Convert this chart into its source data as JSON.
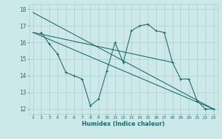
{
  "bg_color": "#cce8e8",
  "grid_color": "#aacfcf",
  "line_color": "#1a6b6b",
  "xlabel": "Humidex (Indice chaleur)",
  "ylim": [
    11.7,
    18.3
  ],
  "xlim": [
    0.5,
    23.5
  ],
  "yticks": [
    12,
    13,
    14,
    15,
    16,
    17,
    18
  ],
  "xticks": [
    1,
    2,
    3,
    4,
    5,
    6,
    7,
    8,
    9,
    10,
    11,
    12,
    13,
    14,
    15,
    16,
    17,
    18,
    19,
    20,
    21,
    22,
    23
  ],
  "series": [
    {
      "x": [
        2,
        3,
        4,
        5,
        6,
        7,
        8,
        9,
        10,
        11,
        12,
        13,
        14,
        15,
        16,
        17,
        18,
        19,
        20,
        21,
        22,
        23
      ],
      "y": [
        16.6,
        15.9,
        15.3,
        14.2,
        14.0,
        13.8,
        12.2,
        12.6,
        14.3,
        16.0,
        14.8,
        16.7,
        17.0,
        17.1,
        16.7,
        16.6,
        14.8,
        13.8,
        13.8,
        12.5,
        12.0,
        12.0
      ],
      "marker": true
    },
    {
      "x": [
        1,
        23
      ],
      "y": [
        17.8,
        12.0
      ],
      "marker": false
    },
    {
      "x": [
        1,
        23
      ],
      "y": [
        16.6,
        12.0
      ],
      "marker": false
    },
    {
      "x": [
        1,
        18
      ],
      "y": [
        16.6,
        14.8
      ],
      "marker": false
    }
  ]
}
